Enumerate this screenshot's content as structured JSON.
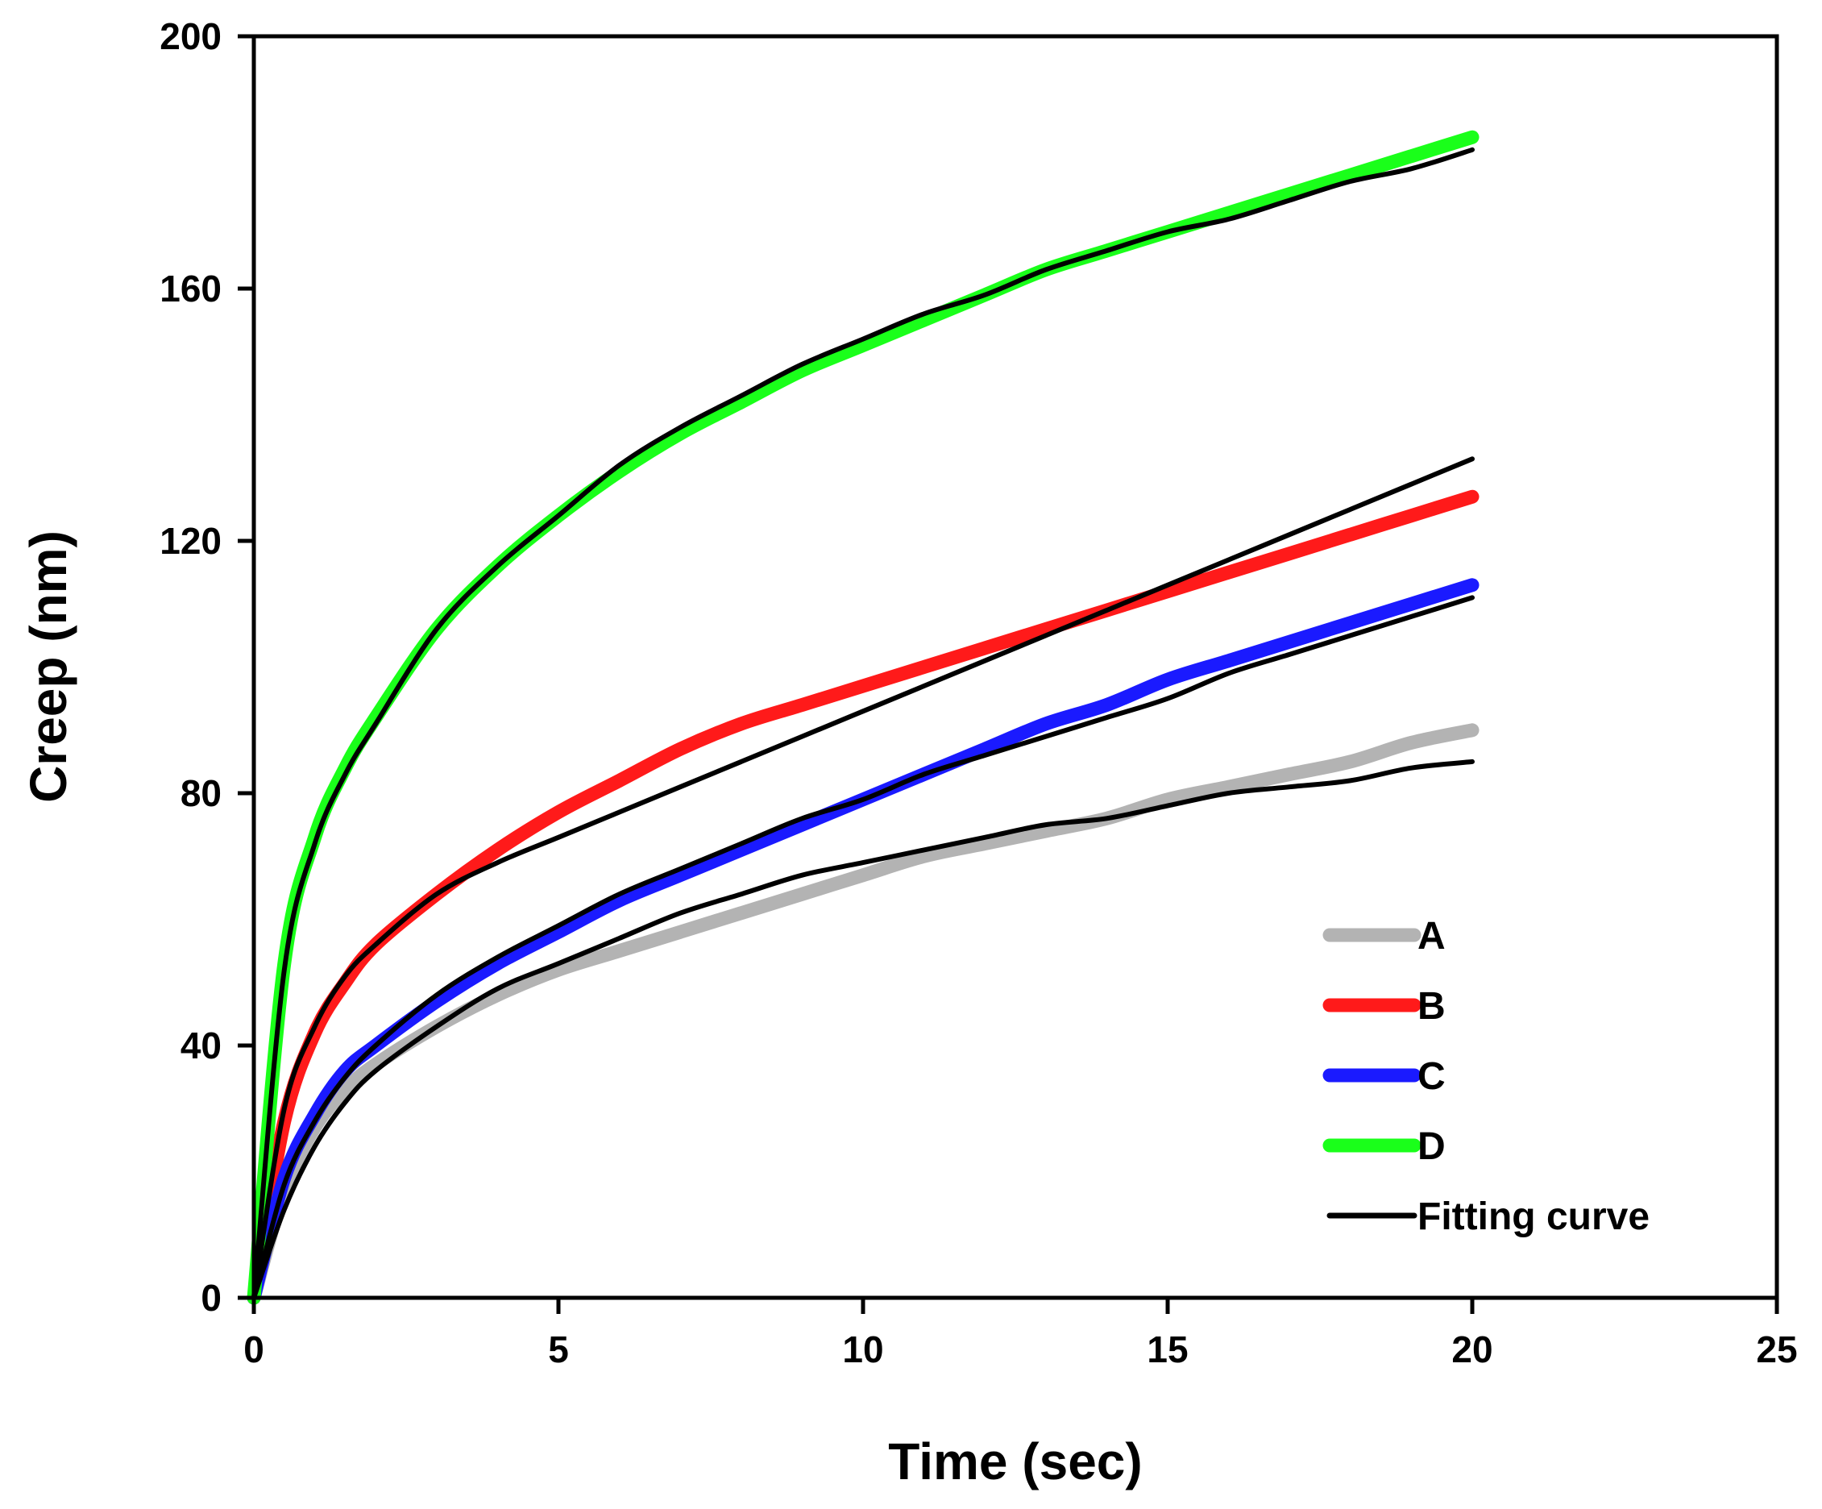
{
  "chart_data": {
    "type": "line",
    "title": "",
    "xlabel": "Time (sec)",
    "ylabel": "Creep (nm)",
    "xlim": [
      0,
      25
    ],
    "ylim": [
      0,
      200
    ],
    "xticks": [
      0,
      5,
      10,
      15,
      20,
      25
    ],
    "yticks": [
      0,
      40,
      80,
      120,
      160,
      200
    ],
    "grid": false,
    "legend_position": "bottom-right",
    "series": [
      {
        "name": "A",
        "kind": "data",
        "color": "#b3b3b3",
        "x": [
          0,
          0.5,
          1,
          1.5,
          2,
          3,
          4,
          5,
          6,
          7,
          8,
          9,
          10,
          11,
          12,
          13,
          14,
          15,
          16,
          17,
          18,
          19,
          20
        ],
        "y": [
          0,
          17,
          27,
          33,
          37,
          43,
          48,
          52,
          55,
          58,
          61,
          64,
          67,
          70,
          72,
          74,
          76,
          79,
          81,
          83,
          85,
          88,
          90
        ]
      },
      {
        "name": "B",
        "kind": "data",
        "color": "#ff1a1a",
        "x": [
          0,
          0.5,
          1,
          1.5,
          2,
          3,
          4,
          5,
          6,
          7,
          8,
          9,
          10,
          11,
          12,
          13,
          14,
          15,
          16,
          17,
          18,
          19,
          20
        ],
        "y": [
          0,
          28,
          42,
          50,
          56,
          64,
          71,
          77,
          82,
          87,
          91,
          94,
          97,
          100,
          103,
          106,
          109,
          112,
          115,
          118,
          121,
          124,
          127
        ]
      },
      {
        "name": "C",
        "kind": "data",
        "color": "#1a1aff",
        "x": [
          0,
          0.5,
          1,
          1.5,
          2,
          3,
          4,
          5,
          6,
          7,
          8,
          9,
          10,
          11,
          12,
          13,
          14,
          15,
          16,
          17,
          18,
          19,
          20
        ],
        "y": [
          0,
          19,
          29,
          36,
          40,
          47,
          53,
          58,
          63,
          67,
          71,
          75,
          79,
          83,
          87,
          91,
          94,
          98,
          101,
          104,
          107,
          110,
          113
        ]
      },
      {
        "name": "D",
        "kind": "data",
        "color": "#1aff1a",
        "x": [
          0,
          0.5,
          1,
          1.5,
          2,
          3,
          4,
          5,
          6,
          7,
          8,
          9,
          10,
          11,
          12,
          13,
          14,
          15,
          16,
          17,
          18,
          19,
          20
        ],
        "y": [
          0,
          53,
          73,
          84,
          92,
          106,
          116,
          124,
          131,
          137,
          142,
          147,
          151,
          155,
          159,
          163,
          166,
          169,
          172,
          175,
          178,
          181,
          184
        ]
      },
      {
        "name": "Fitting curve",
        "kind": "fit",
        "color": "#000000",
        "x": [
          0,
          0.5,
          1,
          1.5,
          2,
          3,
          4,
          5,
          6,
          7,
          8,
          9,
          10,
          11,
          12,
          13,
          14,
          15,
          16,
          17,
          18,
          19,
          20
        ],
        "y": [
          0,
          14,
          24,
          31,
          36,
          43,
          49,
          53,
          57,
          61,
          64,
          67,
          69,
          71,
          73,
          75,
          76,
          78,
          80,
          81,
          82,
          84,
          85
        ]
      },
      {
        "name": "",
        "kind": "fit",
        "color": "#000000",
        "x": [
          0,
          0.5,
          1,
          1.5,
          2,
          3,
          4,
          5,
          6,
          7,
          8,
          9,
          10,
          11,
          12,
          13,
          14,
          15,
          16,
          17,
          18,
          19,
          20
        ],
        "y": [
          0,
          30,
          43,
          51,
          56,
          64,
          69,
          73,
          77,
          81,
          85,
          89,
          93,
          97,
          101,
          105,
          109,
          113,
          117,
          121,
          125,
          129,
          133
        ]
      },
      {
        "name": "",
        "kind": "fit",
        "color": "#000000",
        "x": [
          0,
          0.5,
          1,
          1.5,
          2,
          3,
          4,
          5,
          6,
          7,
          8,
          9,
          10,
          11,
          12,
          13,
          14,
          15,
          16,
          17,
          18,
          19,
          20
        ],
        "y": [
          0,
          18,
          28,
          35,
          40,
          48,
          54,
          59,
          64,
          68,
          72,
          76,
          79,
          83,
          86,
          89,
          92,
          95,
          99,
          102,
          105,
          108,
          111
        ]
      },
      {
        "name": "",
        "kind": "fit",
        "color": "#000000",
        "x": [
          0,
          0.5,
          1,
          1.5,
          2,
          3,
          4,
          5,
          6,
          7,
          8,
          9,
          10,
          11,
          12,
          13,
          14,
          15,
          16,
          17,
          18,
          19,
          20
        ],
        "y": [
          0,
          52,
          72,
          83,
          91,
          106,
          116,
          124,
          132,
          138,
          143,
          148,
          152,
          156,
          159,
          163,
          166,
          169,
          171,
          174,
          177,
          179,
          182
        ]
      }
    ]
  }
}
